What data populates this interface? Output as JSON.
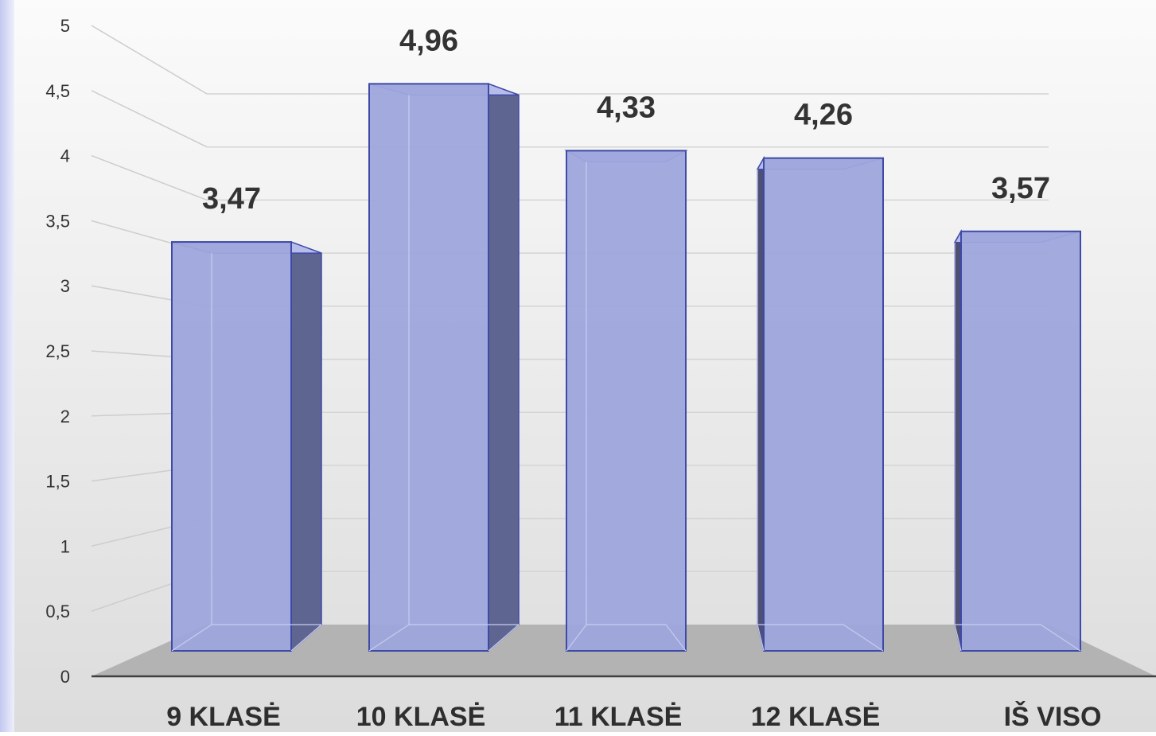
{
  "chart_data": {
    "type": "bar",
    "title": "",
    "xlabel": "",
    "ylabel": "",
    "ylim": [
      0,
      5
    ],
    "yticks": [
      "0",
      "0,5",
      "1",
      "1,5",
      "2",
      "2,5",
      "3",
      "3,5",
      "4",
      "4,5",
      "5"
    ],
    "categories": [
      "9 KLASĖ",
      "10 KLASĖ",
      "11 KLASĖ",
      "12 KLASĖ",
      "IŠ VISO"
    ],
    "values": [
      3.47,
      4.96,
      4.33,
      4.26,
      3.57
    ],
    "value_labels": [
      "3,47",
      "4,96",
      "4,33",
      "4,26",
      "3,57"
    ],
    "grid": true,
    "legend": "none",
    "style": "3d-column",
    "colors": {
      "bar_front": "#9ea6dc",
      "bar_side": "#5e6591",
      "bar_edge": "#3f4aa6",
      "floor": "#b3b3b3",
      "background_top": "#fbfbfb",
      "background_bottom": "#dedede",
      "accent_left": "#c9cdf0"
    }
  }
}
